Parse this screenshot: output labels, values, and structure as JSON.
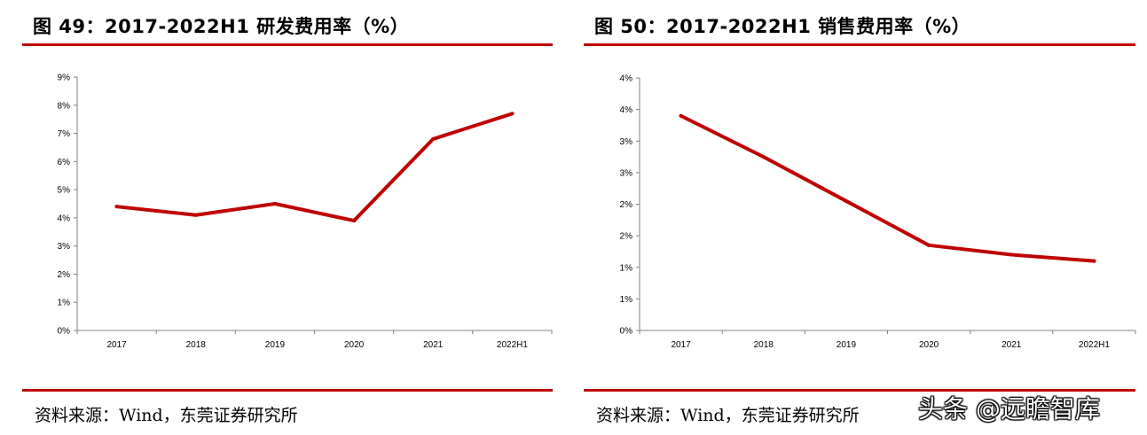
{
  "colors": {
    "accent": "#c00000",
    "line": "#c00000",
    "axis": "#808080"
  },
  "left": {
    "title": "图 49：2017-2022H1 研发费用率（%）",
    "source": "资料来源：Wind，东莞证券研究所"
  },
  "right": {
    "title": "图 50：2017-2022H1 销售费用率（%）",
    "source": "资料来源：Wind，东莞证券研究所"
  },
  "watermark": "头条 @远瞻智库",
  "chart_data": [
    {
      "type": "line",
      "title": "图 49：2017-2022H1 研发费用率（%）",
      "categories": [
        "2017",
        "2018",
        "2019",
        "2020",
        "2021",
        "2022H1"
      ],
      "series": [
        {
          "values": [
            4.4,
            4.1,
            4.5,
            3.9,
            6.8,
            7.7
          ]
        }
      ],
      "ylim": [
        0,
        9
      ],
      "yticks": [
        0,
        1,
        2,
        3,
        4,
        5,
        6,
        7,
        8,
        9
      ],
      "ytick_labels": [
        "0%",
        "1%",
        "2%",
        "3%",
        "4%",
        "5%",
        "6%",
        "7%",
        "8%",
        "9%"
      ],
      "grid": false,
      "legend": "none"
    },
    {
      "type": "line",
      "title": "图 50：2017-2022H1 销售费用率（%）",
      "categories": [
        "2017",
        "2018",
        "2019",
        "2020",
        "2021",
        "2022H1"
      ],
      "series": [
        {
          "values": [
            3.4,
            2.75,
            2.05,
            1.35,
            1.2,
            1.1
          ]
        }
      ],
      "ylim": [
        0,
        4
      ],
      "yticks": [
        0,
        0.5,
        1,
        1.5,
        2,
        2.5,
        3,
        3.5,
        4
      ],
      "ytick_labels": [
        "0%",
        "1%",
        "1%",
        "2%",
        "2%",
        "3%",
        "3%",
        "4%",
        "4%"
      ],
      "grid": false,
      "legend": "none"
    }
  ]
}
